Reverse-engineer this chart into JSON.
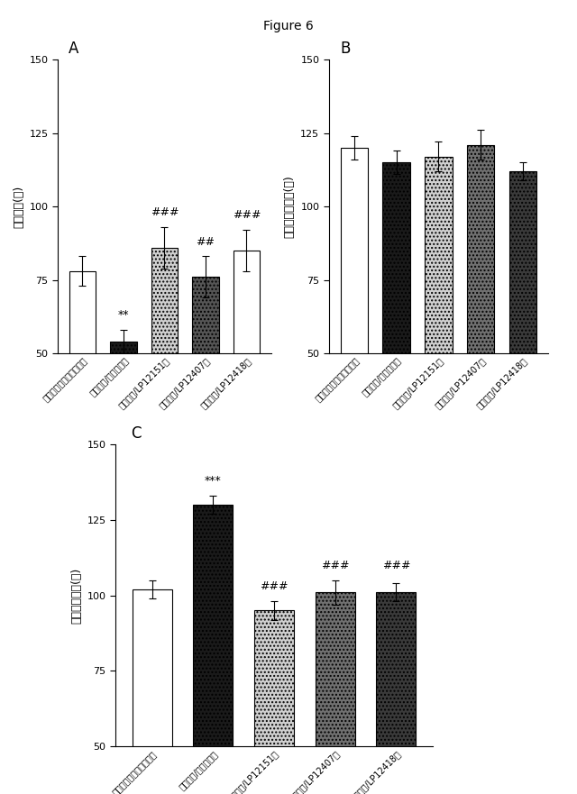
{
  "title": "Figure 6",
  "categories": [
    "ストレス無しビヒクル群",
    "ストレス/ビヒクル群",
    "ストレス/LP12151群",
    "ストレス/LP12407群",
    "ストレス/LP12418群"
  ],
  "panel_A": {
    "ylabel": "水泳時間(秒)",
    "values": [
      78,
      54,
      86,
      76,
      85
    ],
    "errors": [
      5,
      4,
      7,
      7,
      7
    ],
    "ylim": [
      50,
      150
    ],
    "yticks": [
      50,
      75,
      100,
      125,
      150
    ],
    "colors": [
      "#ffffff",
      "#1a1a1a",
      "#d0d0d0",
      "#555555",
      "#ffffff"
    ],
    "hatches": [
      "",
      "....",
      "....",
      "....",
      ""
    ],
    "annotations": [
      {
        "bar": 1,
        "text": "**",
        "y": 61
      },
      {
        "bar": 2,
        "text": "###",
        "y": 96
      },
      {
        "bar": 3,
        "text": "##",
        "y": 86
      },
      {
        "bar": 4,
        "text": "###",
        "y": 95
      }
    ]
  },
  "panel_B": {
    "ylabel": "もがき行動時間(秒)",
    "values": [
      120,
      115,
      117,
      121,
      112
    ],
    "errors": [
      4,
      4,
      5,
      5,
      3
    ],
    "ylim": [
      50,
      150
    ],
    "yticks": [
      50,
      75,
      100,
      125,
      150
    ],
    "colors": [
      "#ffffff",
      "#1a1a1a",
      "#d0d0d0",
      "#707070",
      "#3a3a3a"
    ],
    "hatches": [
      "",
      "....",
      "....",
      "....",
      "...."
    ],
    "annotations": []
  },
  "panel_C": {
    "ylabel": "無動行動時間(秒)",
    "values": [
      102,
      130,
      95,
      101,
      101
    ],
    "errors": [
      3,
      3,
      3,
      4,
      3
    ],
    "ylim": [
      50,
      150
    ],
    "yticks": [
      50,
      75,
      100,
      125,
      150
    ],
    "colors": [
      "#ffffff",
      "#1a1a1a",
      "#d0d0d0",
      "#707070",
      "#3a3a3a"
    ],
    "hatches": [
      "",
      "....",
      "....",
      "....",
      "...."
    ],
    "annotations": [
      {
        "bar": 1,
        "text": "***",
        "y": 136
      },
      {
        "bar": 2,
        "text": "###",
        "y": 101
      },
      {
        "bar": 3,
        "text": "###",
        "y": 108
      },
      {
        "bar": 4,
        "text": "###",
        "y": 108
      }
    ]
  },
  "bar_width": 0.65,
  "tick_fontsize": 8,
  "label_fontsize": 9,
  "annot_fontsize": 9,
  "panel_label_fontsize": 12
}
